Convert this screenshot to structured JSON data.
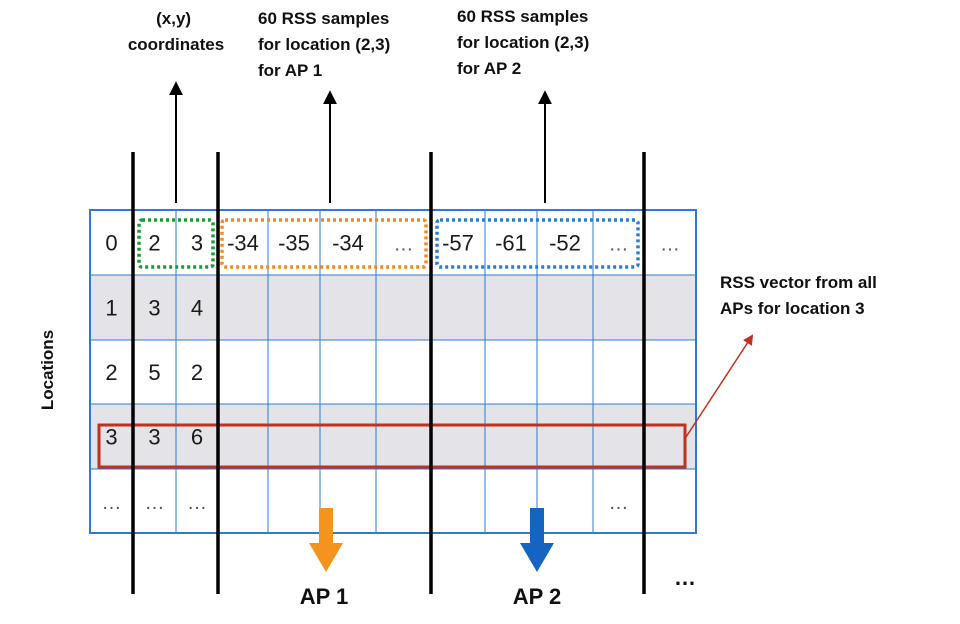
{
  "annotations": {
    "xy_coordinates": [
      "(x,y)",
      "coordinates"
    ],
    "ap1_samples": [
      "60 RSS samples",
      "for location (2,3)",
      "for AP 1"
    ],
    "ap2_samples": [
      "60 RSS samples",
      "for location (2,3)",
      "for AP 2"
    ],
    "rss_vector": [
      "RSS vector from all",
      "APs for location 3"
    ],
    "locations_axis": "Locations"
  },
  "ap_labels": {
    "ap1": "AP 1",
    "ap2": "AP 2",
    "more": "…"
  },
  "table": {
    "rows": [
      [
        "0",
        "2",
        "3",
        "-34",
        "-35",
        "-34",
        "…",
        "-57",
        "-61",
        "-52",
        "…",
        "…"
      ],
      [
        "1",
        "3",
        "4",
        "",
        "",
        "",
        "",
        "",
        "",
        "",
        "",
        ""
      ],
      [
        "2",
        "5",
        "2",
        "",
        "",
        "",
        "",
        "",
        "",
        "",
        "",
        ""
      ],
      [
        "3",
        "3",
        "6",
        "",
        "",
        "",
        "",
        "",
        "",
        "",
        "",
        ""
      ],
      [
        "…",
        "…",
        "…",
        "",
        "",
        "",
        "",
        "",
        "",
        "",
        "…",
        ""
      ]
    ]
  },
  "colors": {
    "grid": "#2d7cd1",
    "shaded_row": "#e3e3e8",
    "coords_box": "#1a9b3a",
    "ap1_box": "#f08a24",
    "ap2_box": "#2d7cd1",
    "vector_box": "#c0321e",
    "ap1_arrow": "#f5931f",
    "ap2_arrow": "#1565c0"
  }
}
